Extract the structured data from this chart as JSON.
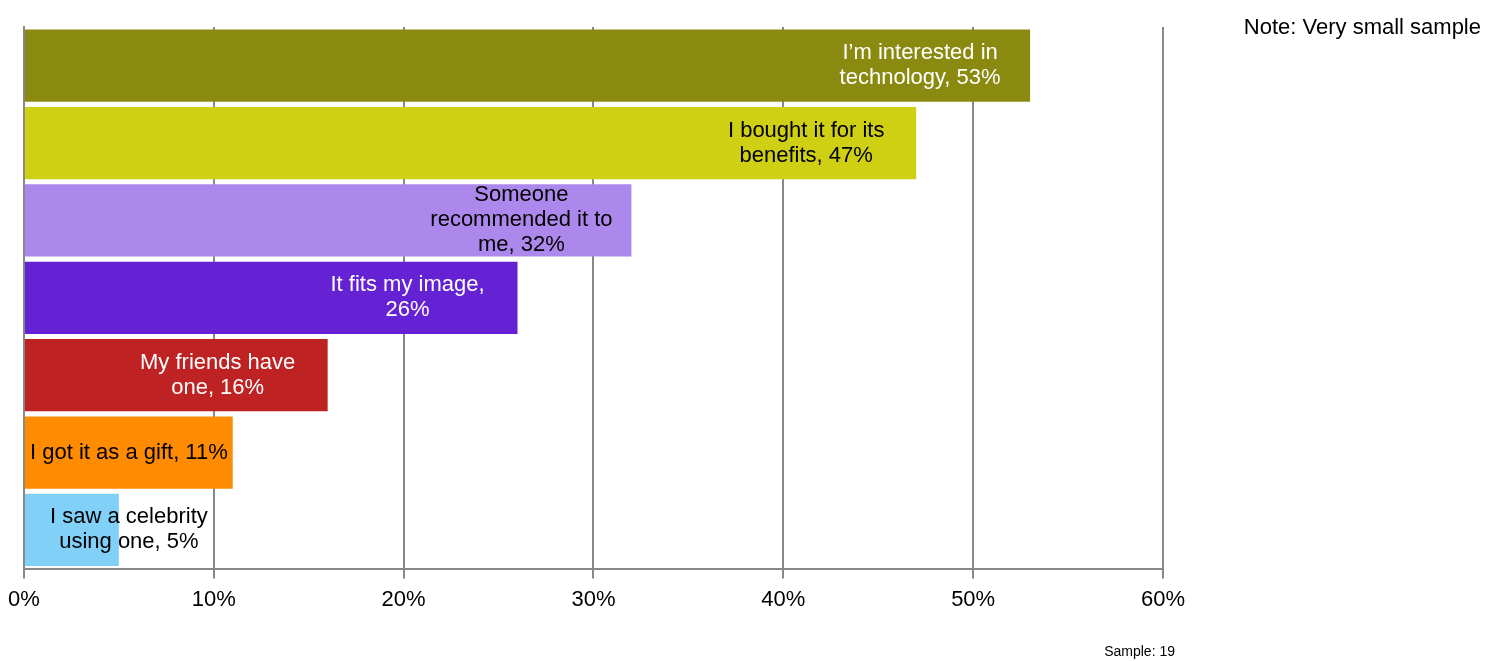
{
  "chart_data": {
    "type": "bar",
    "orientation": "horizontal",
    "categories": [
      null,
      null,
      null,
      null,
      null,
      null,
      null
    ],
    "values": [
      53,
      47,
      32,
      26,
      16,
      11,
      5
    ],
    "colors": [
      "#8a8a10",
      "#cfcf14",
      "#ad88ec",
      "#6422d4",
      "#be2222",
      "#ff8c00",
      "#80d0f8"
    ],
    "value_labels": [
      "I’m interested in technology, 53%",
      "I bought it for its benefits, 47%",
      "Someone recommended it to me, 32%",
      "It fits my image, 26%",
      "My friends have one, 16%",
      "I got it as a gift, 11%",
      "I saw a celebrity using one, 5%"
    ],
    "xlim": [
      0,
      60
    ],
    "xticks": [
      {
        "value": 0,
        "label": "0%"
      },
      {
        "value": 10,
        "label": "10%"
      },
      {
        "value": 20,
        "label": "20%"
      },
      {
        "value": 30,
        "label": "30%"
      },
      {
        "value": 40,
        "label": "40%"
      },
      {
        "value": 50,
        "label": "50%"
      },
      {
        "value": 60,
        "label": "60%"
      }
    ],
    "grid": "x",
    "legend": false,
    "tick_labels": "x",
    "annotations": [
      "Note: Very small sample",
      "Sample: 19"
    ]
  }
}
